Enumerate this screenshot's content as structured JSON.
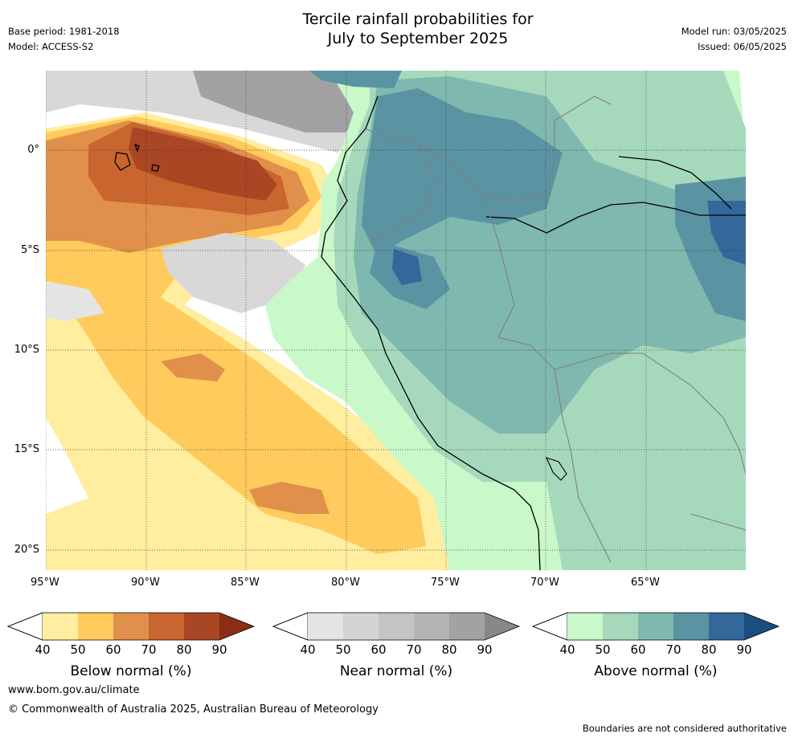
{
  "header": {
    "title_line1": "Tercile rainfall probabilities for",
    "title_line2": "July to September 2025",
    "base_period": "Base period: 1981-2018",
    "model": "Model: ACCESS-S2",
    "model_run": "Model run: 03/05/2025",
    "issued": "Issued: 06/05/2025"
  },
  "map": {
    "lon_labels": [
      "95°W",
      "90°W",
      "85°W",
      "80°W",
      "75°W",
      "70°W",
      "65°W"
    ],
    "lat_labels": [
      "0°",
      "5°S",
      "10°S",
      "15°S",
      "20°S"
    ],
    "extent": {
      "lon_min": -95,
      "lon_max": -60,
      "lat_min": -21,
      "lat_max": 4
    }
  },
  "legends": [
    {
      "label": "Below normal (%)",
      "ticks": [
        "40",
        "50",
        "60",
        "70",
        "80",
        "90"
      ],
      "colors": [
        "#ffeda0",
        "#fecb5c",
        "#e0904a",
        "#c9652e",
        "#a94623",
        "#8a2f16"
      ]
    },
    {
      "label": "Near normal (%)",
      "ticks": [
        "40",
        "50",
        "60",
        "70",
        "80",
        "90"
      ],
      "colors": [
        "#e4e4e4",
        "#d4d4d4",
        "#c4c4c4",
        "#b4b4b4",
        "#a2a2a2",
        "#888888"
      ]
    },
    {
      "label": "Above normal (%)",
      "ticks": [
        "40",
        "50",
        "60",
        "70",
        "80",
        "90"
      ],
      "colors": [
        "#c9f8c9",
        "#a6d9bc",
        "#7fb8ae",
        "#5a93a2",
        "#34689a",
        "#1a4d80"
      ]
    }
  ],
  "footer": {
    "url": "www.bom.gov.au/climate",
    "copyright": "© Commonwealth of Australia 2025, Australian Bureau of Meteorology",
    "disclaimer": "Boundaries are not considered authoritative"
  }
}
